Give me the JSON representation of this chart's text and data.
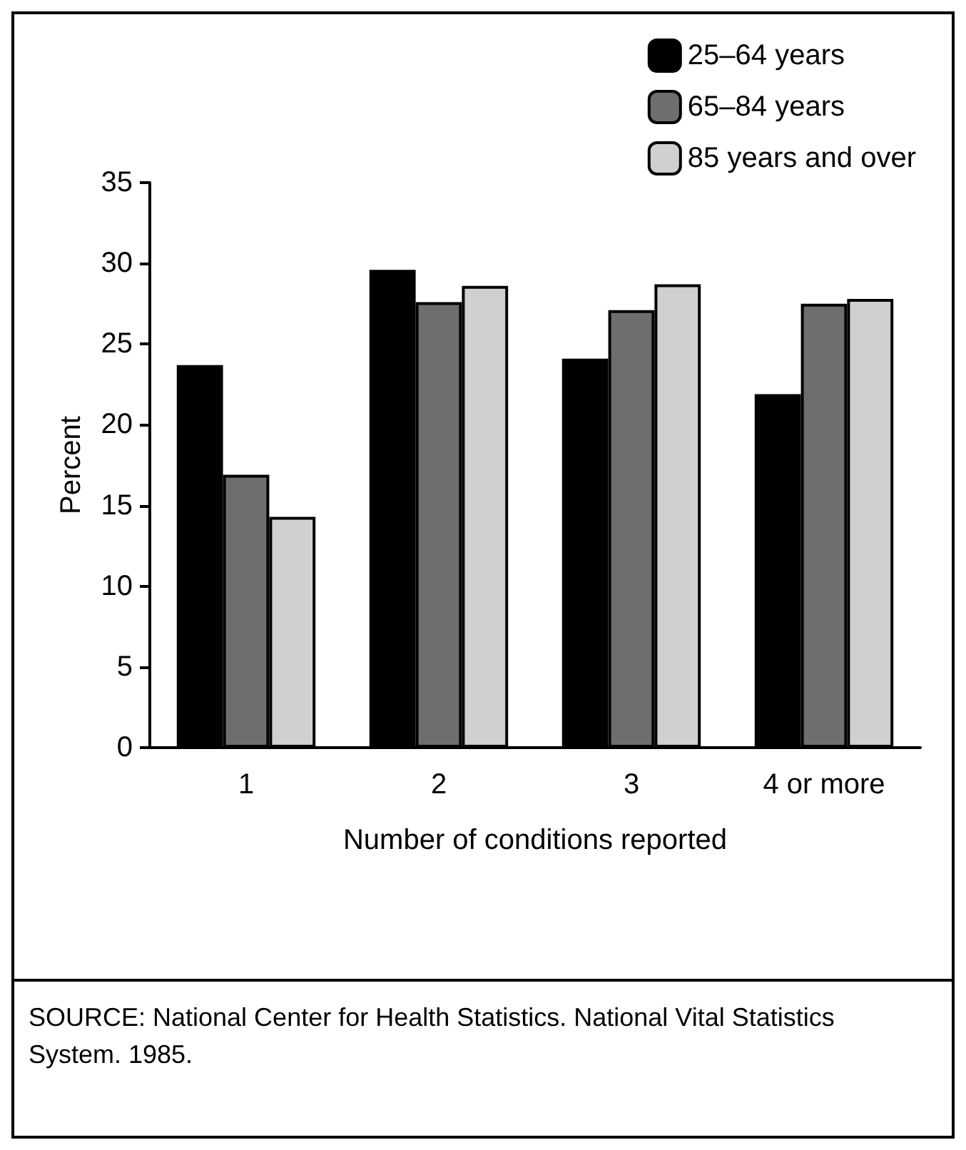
{
  "chart_data": {
    "type": "bar",
    "categories": [
      "1",
      "2",
      "3",
      "4 or more"
    ],
    "series": [
      {
        "name": "25–64 years",
        "color": "#000000",
        "values": [
          23.7,
          29.6,
          24.1,
          21.9
        ]
      },
      {
        "name": "65–84 years",
        "color": "#6e6e6e",
        "values": [
          16.9,
          27.6,
          27.1,
          27.5
        ]
      },
      {
        "name": "85 years and over",
        "color": "#d0d0d0",
        "values": [
          14.3,
          28.6,
          28.7,
          27.8
        ]
      }
    ],
    "xlabel": "Number of conditions reported",
    "ylabel": "Percent",
    "ylim": [
      0,
      35
    ],
    "yticks": [
      0,
      5,
      10,
      15,
      20,
      25,
      30,
      35
    ],
    "grid": false,
    "legend": "top right",
    "annotations": [
      "SOURCE: National Center for Health Statistics. National Vital Statistics System. 1985."
    ]
  }
}
